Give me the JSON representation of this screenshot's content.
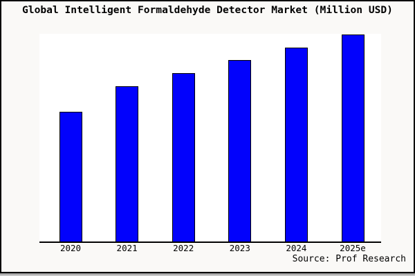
{
  "title": "Global Intelligent Formaldehyde Detector Market (Million USD)",
  "source_label": "Source: Prof Research",
  "colors": {
    "background": "#faf9f7",
    "plot_background": "#ffffff",
    "bar_fill": "#0202fc",
    "bar_border": "#000000",
    "axis": "#000000",
    "text": "#000000"
  },
  "chart_data": {
    "type": "bar",
    "title": "Global Intelligent Formaldehyde Detector Market (Million USD)",
    "categories": [
      "2020",
      "2021",
      "2022",
      "2023",
      "2024",
      "2025e"
    ],
    "values": [
      62.7,
      75.0,
      81.3,
      87.7,
      93.7,
      100.0
    ],
    "value_units": "relative index (no y-axis labels shown; 2025e bar = 100)",
    "xlabel": "",
    "ylabel": "",
    "ylim": [
      0,
      100
    ],
    "grid": false,
    "legend": false,
    "y_axis_ticks": "none shown",
    "annotations": [
      "Source: Prof Research"
    ]
  }
}
